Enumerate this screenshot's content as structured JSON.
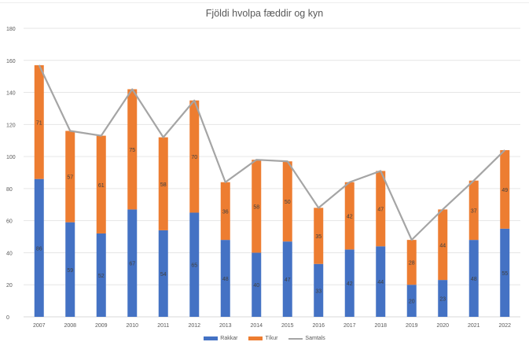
{
  "chart_data": {
    "type": "bar",
    "stacked": true,
    "title": "Fjöldi hvolpa fæddir og kyn",
    "xlabel": "",
    "ylabel": "",
    "ylim": [
      0,
      180
    ],
    "yticks": [
      "0",
      "20",
      "40",
      "60",
      "80",
      "100",
      "120",
      "140",
      "160",
      "180"
    ],
    "grid": true,
    "legend_position": "bottom",
    "categories": [
      "2007",
      "2008",
      "2009",
      "2010",
      "2011",
      "2012",
      "2013",
      "2014",
      "2015",
      "2016",
      "2017",
      "2018",
      "2019",
      "2020",
      "2021",
      "2022"
    ],
    "series": [
      {
        "name": "Rakkar",
        "kind": "bar",
        "color": "#4472c4",
        "values": [
          86,
          59,
          52,
          67,
          54,
          65,
          48,
          40,
          47,
          33,
          42,
          44,
          20,
          23,
          48,
          55
        ]
      },
      {
        "name": "Tíkur",
        "kind": "bar",
        "color": "#ed7d31",
        "values": [
          71,
          57,
          61,
          75,
          58,
          70,
          36,
          58,
          50,
          35,
          42,
          47,
          28,
          44,
          37,
          49
        ]
      },
      {
        "name": "Samtals",
        "kind": "line",
        "color": "#a5a5a5",
        "values": [
          157,
          116,
          113,
          142,
          112,
          135,
          84,
          98,
          97,
          68,
          84,
          91,
          48,
          67,
          85,
          104
        ]
      }
    ]
  }
}
